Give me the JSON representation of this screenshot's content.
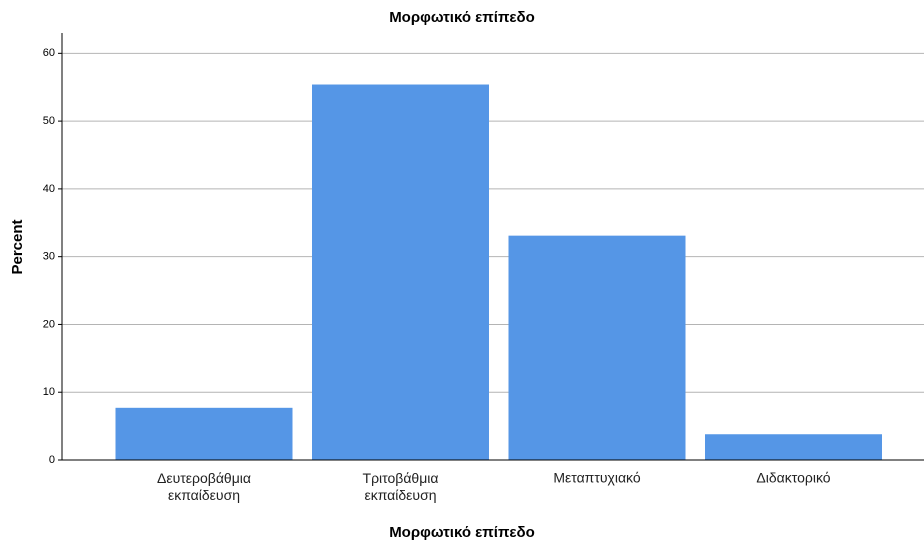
{
  "chart_data": {
    "type": "bar",
    "title": "Μορφωτικό επίπεδο",
    "x_label": "Μορφωτικό επίπεδο",
    "y_label": "Percent",
    "categories": [
      "Δευτεροβάθμια εκπαίδευση",
      "Τριτοβάθμια εκπαίδευση",
      "Μεταπτυχιακό",
      "Διδακτορικό"
    ],
    "values": [
      7.7,
      55.4,
      33.1,
      3.8
    ],
    "color": "#5596e6",
    "ylim": [
      0,
      63
    ],
    "yticks": [
      0,
      10,
      20,
      30,
      40,
      50,
      60
    ],
    "grid": true
  }
}
